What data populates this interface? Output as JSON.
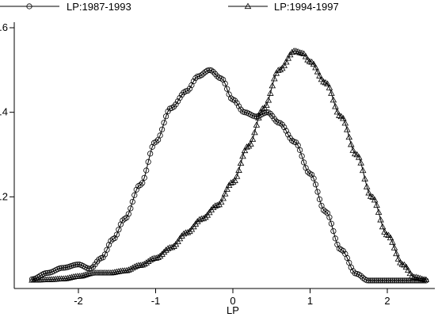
{
  "chart_data": {
    "type": "line",
    "title": "",
    "xlabel": "LP",
    "ylabel": "",
    "xlim": [
      -2.65,
      2.55
    ],
    "ylim": [
      0,
      0.6
    ],
    "x_ticks": [
      -2,
      -1,
      0,
      1,
      2
    ],
    "x_tick_labels": [
      "-2",
      "-1",
      "0",
      "1",
      "2"
    ],
    "y_ticks": [
      0.2,
      0.4,
      0.6
    ],
    "y_tick_labels": [
      ".2",
      ".4",
      ".6"
    ],
    "legend": {
      "position": "top",
      "entries": [
        "LP:1987-1993",
        "LP:1994-1997"
      ]
    },
    "series": [
      {
        "name": "LP:1987-1993",
        "marker": "circle",
        "x": [
          -2.6,
          -2.4,
          -2.2,
          -2.0,
          -1.85,
          -1.7,
          -1.55,
          -1.4,
          -1.2,
          -1.0,
          -0.8,
          -0.6,
          -0.45,
          -0.3,
          -0.15,
          0.0,
          0.15,
          0.3,
          0.45,
          0.6,
          0.8,
          1.0,
          1.2,
          1.4,
          1.6,
          1.75,
          1.9,
          2.1,
          2.3,
          2.5
        ],
        "y": [
          0.005,
          0.02,
          0.032,
          0.04,
          0.03,
          0.055,
          0.1,
          0.148,
          0.228,
          0.33,
          0.41,
          0.45,
          0.485,
          0.5,
          0.48,
          0.43,
          0.4,
          0.39,
          0.4,
          0.375,
          0.33,
          0.255,
          0.165,
          0.075,
          0.018,
          0.002,
          0.002,
          0.002,
          0.002,
          0.002
        ]
      },
      {
        "name": "LP:1994-1997",
        "marker": "triangle",
        "x": [
          -2.6,
          -2.4,
          -2.2,
          -2.0,
          -1.8,
          -1.6,
          -1.4,
          -1.2,
          -1.0,
          -0.8,
          -0.6,
          -0.4,
          -0.2,
          0.0,
          0.2,
          0.4,
          0.6,
          0.8,
          0.9,
          1.0,
          1.2,
          1.4,
          1.6,
          1.8,
          2.0,
          2.2,
          2.35,
          2.5
        ],
        "y": [
          0.003,
          0.004,
          0.006,
          0.012,
          0.02,
          0.02,
          0.025,
          0.038,
          0.055,
          0.08,
          0.115,
          0.148,
          0.18,
          0.235,
          0.32,
          0.41,
          0.5,
          0.545,
          0.54,
          0.52,
          0.47,
          0.39,
          0.3,
          0.2,
          0.11,
          0.04,
          0.01,
          0.004
        ]
      }
    ]
  }
}
